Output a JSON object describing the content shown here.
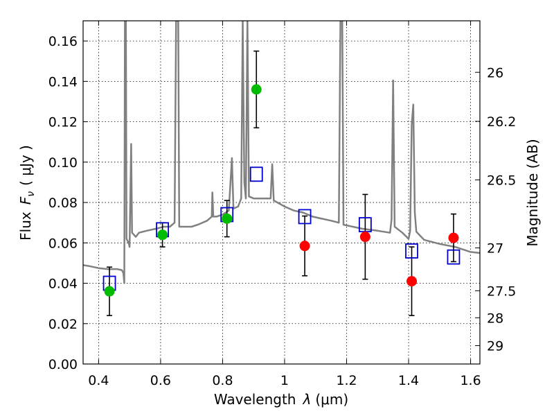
{
  "chart_data": {
    "type": "scatter",
    "title": "",
    "xlabel_text": "Wavelength",
    "xlabel_symbol": "λ",
    "xlabel_unit": "(μm)",
    "ylabel_text": "Flux",
    "ylabel_symbol": "F",
    "ylabel_subscript": "ν",
    "ylabel_unit": "( μJy )",
    "y2label": "Magnitude (AB)",
    "xlim": [
      0.35,
      1.63
    ],
    "ylim": [
      0.0,
      0.17
    ],
    "grid": true,
    "x_ticks": [
      0.4,
      0.6,
      0.8,
      1.0,
      1.2,
      1.4,
      1.6
    ],
    "x_tick_labels": [
      "0.4",
      "0.6",
      "0.8",
      "1",
      "1.2",
      "1.4",
      "1.6"
    ],
    "y_ticks": [
      0.0,
      0.02,
      0.04,
      0.06,
      0.08,
      0.1,
      0.12,
      0.14,
      0.16
    ],
    "y_tick_labels": [
      "0.00",
      "0.02",
      "0.04",
      "0.06",
      "0.08",
      "0.10",
      "0.12",
      "0.14",
      "0.16"
    ],
    "y2_ticks": [
      {
        "label": "26",
        "flux": 0.1445
      },
      {
        "label": "26.2",
        "flux": 0.1202
      },
      {
        "label": "26.5",
        "flux": 0.0912
      },
      {
        "label": "27",
        "flux": 0.0575
      },
      {
        "label": "27.5",
        "flux": 0.0363
      },
      {
        "label": "28",
        "flux": 0.0229
      },
      {
        "label": "29",
        "flux": 0.0091
      }
    ],
    "series": [
      {
        "marker": "circle",
        "color": "#00bb00",
        "points": [
          {
            "x": 0.435,
            "y": 0.036,
            "err": 0.012
          },
          {
            "x": 0.606,
            "y": 0.064,
            "err": 0.006
          },
          {
            "x": 0.814,
            "y": 0.072,
            "err": 0.009
          },
          {
            "x": 0.909,
            "y": 0.136,
            "err": 0.019
          }
        ]
      },
      {
        "marker": "circle",
        "color": "#ff0000",
        "points": [
          {
            "x": 1.065,
            "y": 0.0585,
            "err": 0.0148
          },
          {
            "x": 1.26,
            "y": 0.063,
            "err": 0.021
          },
          {
            "x": 1.41,
            "y": 0.041,
            "err": 0.017
          },
          {
            "x": 1.545,
            "y": 0.0625,
            "err": 0.0118
          }
        ]
      },
      {
        "marker": "open-square",
        "color": "#0000cc",
        "points": [
          {
            "x": 0.435,
            "y": 0.04
          },
          {
            "x": 0.606,
            "y": 0.0665
          },
          {
            "x": 0.814,
            "y": 0.074
          },
          {
            "x": 0.909,
            "y": 0.094
          },
          {
            "x": 1.065,
            "y": 0.073
          },
          {
            "x": 1.26,
            "y": 0.069
          },
          {
            "x": 1.41,
            "y": 0.056
          },
          {
            "x": 1.545,
            "y": 0.053
          }
        ]
      }
    ],
    "spectrum": {
      "color": "#808080",
      "points": [
        [
          0.35,
          0.049
        ],
        [
          0.37,
          0.0485
        ],
        [
          0.4,
          0.0475
        ],
        [
          0.43,
          0.047
        ],
        [
          0.46,
          0.047
        ],
        [
          0.475,
          0.0465
        ],
        [
          0.48,
          0.045
        ],
        [
          0.483,
          0.04
        ],
        [
          0.485,
          0.17
        ],
        [
          0.488,
          0.17
        ],
        [
          0.49,
          0.062
        ],
        [
          0.497,
          0.06
        ],
        [
          0.5,
          0.058
        ],
        [
          0.505,
          0.109
        ],
        [
          0.508,
          0.065
        ],
        [
          0.52,
          0.063
        ],
        [
          0.53,
          0.065
        ],
        [
          0.555,
          0.066
        ],
        [
          0.585,
          0.067
        ],
        [
          0.61,
          0.068
        ],
        [
          0.63,
          0.068
        ],
        [
          0.645,
          0.07
        ],
        [
          0.65,
          0.17
        ],
        [
          0.657,
          0.17
        ],
        [
          0.66,
          0.068
        ],
        [
          0.67,
          0.068
        ],
        [
          0.7,
          0.068
        ],
        [
          0.72,
          0.069
        ],
        [
          0.75,
          0.071
        ],
        [
          0.765,
          0.073
        ],
        [
          0.767,
          0.085
        ],
        [
          0.77,
          0.073
        ],
        [
          0.78,
          0.073
        ],
        [
          0.8,
          0.074
        ],
        [
          0.82,
          0.076
        ],
        [
          0.83,
          0.102
        ],
        [
          0.835,
          0.077
        ],
        [
          0.85,
          0.078
        ],
        [
          0.86,
          0.082
        ],
        [
          0.865,
          0.17
        ],
        [
          0.87,
          0.09
        ],
        [
          0.875,
          0.082
        ],
        [
          0.88,
          0.17
        ],
        [
          0.885,
          0.083
        ],
        [
          0.9,
          0.082
        ],
        [
          0.94,
          0.082
        ],
        [
          0.955,
          0.082
        ],
        [
          0.96,
          0.099
        ],
        [
          0.965,
          0.081
        ],
        [
          1.0,
          0.078
        ],
        [
          1.03,
          0.076
        ],
        [
          1.06,
          0.075
        ],
        [
          1.09,
          0.073
        ],
        [
          1.12,
          0.072
        ],
        [
          1.15,
          0.071
        ],
        [
          1.175,
          0.07
        ],
        [
          1.18,
          0.17
        ],
        [
          1.186,
          0.17
        ],
        [
          1.19,
          0.069
        ],
        [
          1.22,
          0.068
        ],
        [
          1.25,
          0.067
        ],
        [
          1.3,
          0.066
        ],
        [
          1.34,
          0.065
        ],
        [
          1.345,
          0.0715
        ],
        [
          1.35,
          0.1405
        ],
        [
          1.355,
          0.068
        ],
        [
          1.38,
          0.065
        ],
        [
          1.4,
          0.062
        ],
        [
          1.405,
          0.066
        ],
        [
          1.41,
          0.1185
        ],
        [
          1.415,
          0.1285
        ],
        [
          1.42,
          0.075
        ],
        [
          1.425,
          0.0655
        ],
        [
          1.45,
          0.0615
        ],
        [
          1.5,
          0.0595
        ],
        [
          1.55,
          0.058
        ],
        [
          1.6,
          0.0555
        ],
        [
          1.63,
          0.055
        ]
      ]
    }
  }
}
